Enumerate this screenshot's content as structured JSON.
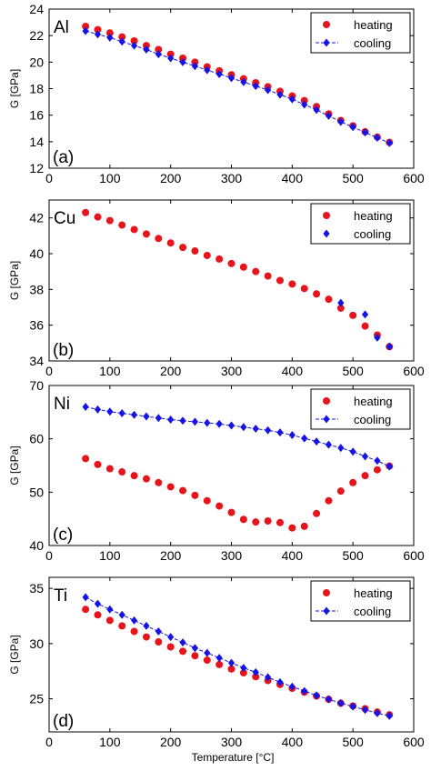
{
  "figure": {
    "x_axis_label": "Temperature [°C]"
  },
  "chart_data": [
    {
      "type": "scatter",
      "material_label": "Al",
      "panel_label": "(a)",
      "ylabel": "G [GPa]",
      "xlim": [
        0,
        600
      ],
      "ylim": [
        12,
        24
      ],
      "x_ticks": [
        0,
        100,
        200,
        300,
        400,
        500,
        600
      ],
      "y_ticks": [
        12,
        14,
        16,
        18,
        20,
        22,
        24
      ],
      "grid": false,
      "legend": "top-right",
      "series": [
        {
          "name": "heating",
          "marker": "circle",
          "line": false,
          "color": "#e8141c",
          "x": [
            60,
            80,
            100,
            120,
            140,
            160,
            180,
            200,
            220,
            240,
            260,
            280,
            300,
            320,
            340,
            360,
            380,
            400,
            420,
            440,
            460,
            480,
            500,
            520,
            540,
            560
          ],
          "y": [
            22.7,
            22.45,
            22.2,
            21.9,
            21.6,
            21.25,
            20.95,
            20.6,
            20.3,
            20.0,
            19.65,
            19.35,
            19.05,
            18.75,
            18.45,
            18.15,
            17.8,
            17.45,
            17.1,
            16.65,
            16.1,
            15.6,
            15.2,
            14.75,
            14.35,
            13.95
          ]
        },
        {
          "name": "cooling",
          "marker": "diamond",
          "line": true,
          "color": "#1414e6",
          "x": [
            60,
            80,
            100,
            120,
            140,
            160,
            180,
            200,
            220,
            240,
            260,
            280,
            300,
            320,
            340,
            360,
            380,
            400,
            420,
            440,
            460,
            480,
            500,
            520,
            540,
            560
          ],
          "y": [
            22.35,
            22.1,
            21.85,
            21.55,
            21.25,
            20.95,
            20.6,
            20.3,
            20.0,
            19.7,
            19.4,
            19.1,
            18.8,
            18.5,
            18.2,
            17.9,
            17.55,
            17.2,
            16.8,
            16.4,
            15.95,
            15.5,
            15.1,
            14.7,
            14.3,
            13.9
          ]
        }
      ]
    },
    {
      "type": "scatter",
      "material_label": "Cu",
      "panel_label": "(b)",
      "ylabel": "G [GPa]",
      "xlim": [
        0,
        600
      ],
      "ylim": [
        34,
        43
      ],
      "x_ticks": [
        0,
        100,
        200,
        300,
        400,
        500,
        600
      ],
      "y_ticks": [
        34,
        36,
        38,
        40,
        42
      ],
      "grid": false,
      "legend": "top-right",
      "series": [
        {
          "name": "heating",
          "marker": "circle",
          "line": false,
          "color": "#e8141c",
          "x": [
            60,
            80,
            100,
            120,
            140,
            160,
            180,
            200,
            220,
            240,
            260,
            280,
            300,
            320,
            340,
            360,
            380,
            400,
            420,
            440,
            460,
            480,
            500,
            520,
            540,
            560
          ],
          "y": [
            42.3,
            42.05,
            41.85,
            41.6,
            41.35,
            41.1,
            40.85,
            40.6,
            40.35,
            40.15,
            39.9,
            39.7,
            39.45,
            39.25,
            39.0,
            38.75,
            38.5,
            38.3,
            38.05,
            37.75,
            37.45,
            36.95,
            36.55,
            35.95,
            35.45,
            34.8
          ]
        },
        {
          "name": "cooling",
          "marker": "diamond",
          "line": false,
          "color": "#1414e6",
          "x": [
            480,
            520,
            540,
            560
          ],
          "y": [
            37.25,
            36.6,
            35.3,
            34.8
          ]
        }
      ]
    },
    {
      "type": "scatter",
      "material_label": "Ni",
      "panel_label": "(c)",
      "ylabel": "G [GPa]",
      "xlim": [
        0,
        600
      ],
      "ylim": [
        40,
        70
      ],
      "x_ticks": [
        0,
        100,
        200,
        300,
        400,
        500,
        600
      ],
      "y_ticks": [
        40,
        50,
        60,
        70
      ],
      "grid": false,
      "legend": "top-right",
      "series": [
        {
          "name": "heating",
          "marker": "circle",
          "line": false,
          "color": "#e8141c",
          "x": [
            60,
            80,
            100,
            120,
            140,
            160,
            180,
            200,
            220,
            240,
            260,
            280,
            300,
            320,
            340,
            360,
            380,
            400,
            420,
            440,
            460,
            480,
            500,
            520,
            540,
            560
          ],
          "y": [
            56.3,
            55.2,
            54.4,
            53.8,
            53.1,
            52.5,
            51.8,
            51.0,
            50.3,
            49.4,
            48.4,
            47.4,
            46.2,
            44.9,
            44.4,
            44.6,
            44.3,
            43.3,
            43.6,
            46.0,
            48.4,
            50.2,
            51.8,
            53.1,
            54.2,
            54.9
          ]
        },
        {
          "name": "cooling",
          "marker": "diamond",
          "line": true,
          "color": "#1414e6",
          "x": [
            60,
            80,
            100,
            120,
            140,
            160,
            180,
            200,
            220,
            240,
            260,
            280,
            300,
            320,
            340,
            360,
            380,
            400,
            420,
            440,
            460,
            480,
            500,
            520,
            540,
            560
          ],
          "y": [
            66.0,
            65.5,
            65.1,
            64.8,
            64.5,
            64.2,
            63.9,
            63.6,
            63.4,
            63.2,
            63.0,
            62.8,
            62.5,
            62.2,
            61.9,
            61.6,
            61.2,
            60.7,
            60.1,
            59.5,
            58.9,
            58.3,
            57.6,
            56.7,
            55.9,
            54.8
          ]
        }
      ]
    },
    {
      "type": "scatter",
      "material_label": "Ti",
      "panel_label": "(d)",
      "ylabel": "G [GPa]",
      "xlim": [
        0,
        600
      ],
      "ylim": [
        22,
        36
      ],
      "x_ticks": [
        0,
        100,
        200,
        300,
        400,
        500,
        600
      ],
      "y_ticks": [
        25,
        30,
        35
      ],
      "grid": false,
      "legend": "top-right",
      "series": [
        {
          "name": "heating",
          "marker": "circle",
          "line": false,
          "color": "#e8141c",
          "x": [
            60,
            80,
            100,
            120,
            140,
            160,
            180,
            200,
            220,
            240,
            260,
            280,
            300,
            320,
            340,
            360,
            380,
            400,
            420,
            440,
            460,
            480,
            500,
            520,
            540,
            560
          ],
          "y": [
            33.1,
            32.6,
            32.1,
            31.6,
            31.1,
            30.6,
            30.15,
            29.7,
            29.3,
            28.9,
            28.5,
            28.1,
            27.7,
            27.35,
            27.0,
            26.65,
            26.3,
            25.95,
            25.6,
            25.25,
            24.95,
            24.6,
            24.35,
            24.1,
            23.8,
            23.55
          ]
        },
        {
          "name": "cooling",
          "marker": "diamond",
          "line": true,
          "color": "#1414e6",
          "x": [
            60,
            80,
            100,
            120,
            140,
            160,
            180,
            200,
            220,
            240,
            260,
            280,
            300,
            320,
            340,
            360,
            380,
            400,
            420,
            440,
            460,
            480,
            500,
            520,
            540,
            560
          ],
          "y": [
            34.2,
            33.6,
            33.1,
            32.6,
            32.1,
            31.6,
            31.1,
            30.6,
            30.1,
            29.6,
            29.15,
            28.7,
            28.25,
            27.8,
            27.4,
            26.95,
            26.5,
            26.1,
            25.7,
            25.3,
            24.95,
            24.6,
            24.3,
            24.0,
            23.7,
            23.45
          ]
        }
      ]
    }
  ]
}
